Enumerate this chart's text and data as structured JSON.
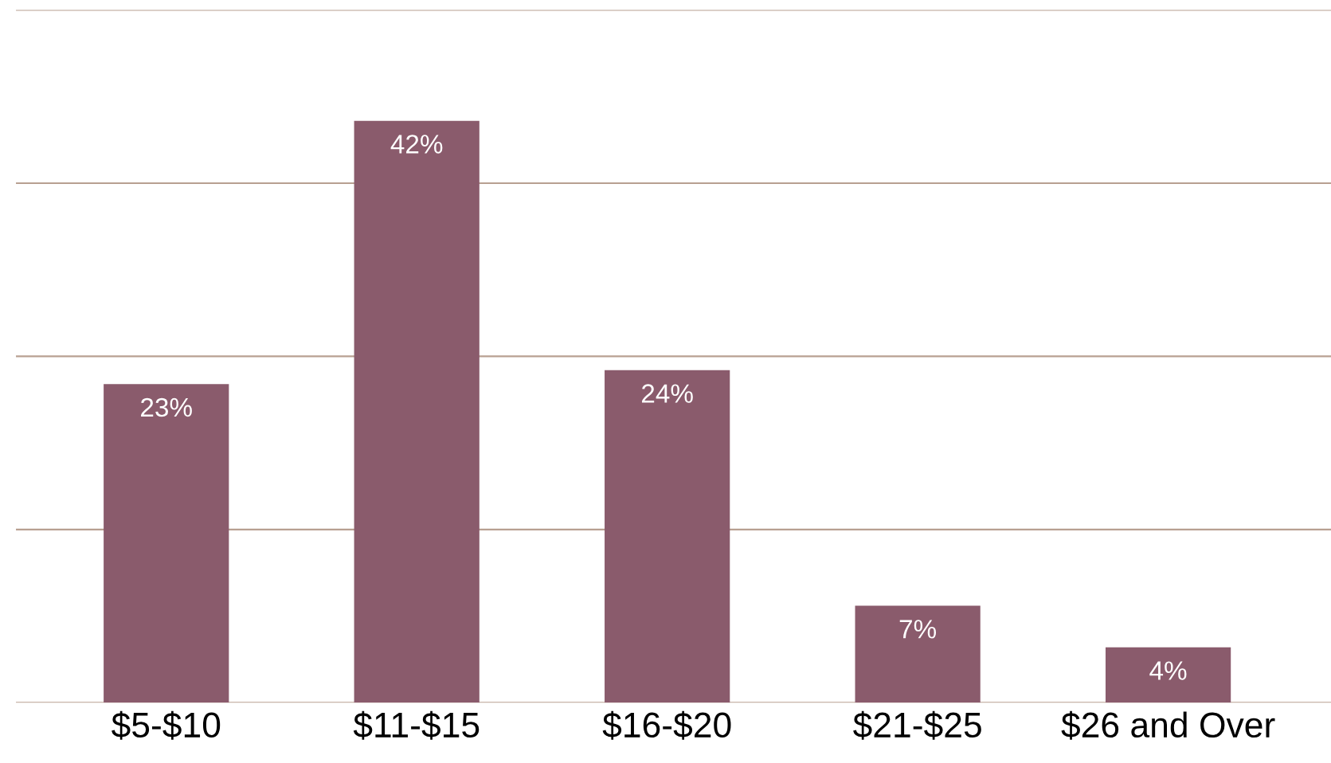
{
  "chart_data": {
    "type": "bar",
    "categories": [
      "$5-$10",
      "$11-$15",
      "$16-$20",
      "$21-$25",
      "$26 and Over"
    ],
    "values": [
      23,
      42,
      24,
      7,
      4
    ],
    "value_labels": [
      "23%",
      "42%",
      "24%",
      "7%",
      "4%"
    ],
    "color": "#8a5b6c",
    "ylim": [
      0,
      50
    ],
    "yticks": [
      {
        "value": 0,
        "label": null
      },
      {
        "value": 12.5,
        "label": null
      },
      {
        "value": 25,
        "label": null
      },
      {
        "value": 37.5,
        "label": null
      },
      {
        "value": 50,
        "label": null
      }
    ],
    "tick_labels": "x",
    "grid": "y"
  }
}
